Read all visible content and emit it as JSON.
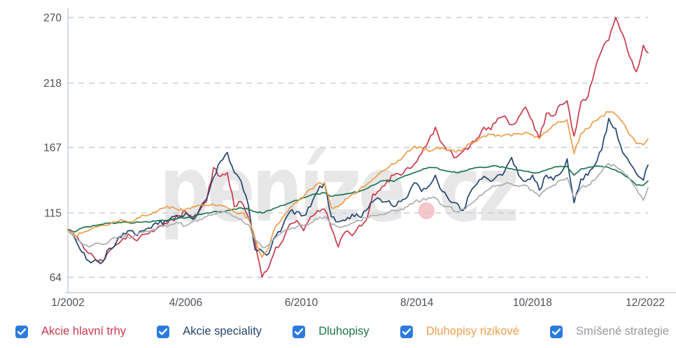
{
  "chart_data": {
    "type": "line",
    "title": "",
    "xlabel": "",
    "ylabel": "",
    "x_start": "1/2002",
    "x_end": "12/2022",
    "x_step_months": 3,
    "x_tick_labels": [
      "1/2002",
      "4/2006",
      "6/2010",
      "8/2014",
      "10/2018",
      "12/2022"
    ],
    "x_tick_months": [
      0,
      51,
      101,
      151,
      201,
      251
    ],
    "y_tick_labels": [
      270,
      218,
      167,
      115,
      64
    ],
    "ylim": [
      64,
      270
    ],
    "grid": "dashed-horizontal",
    "legend_position": "bottom",
    "series": [
      {
        "name": "Akcie hlavní trhy",
        "color": "#c93a4c",
        "values": [
          102,
          97,
          91,
          83,
          78,
          77,
          85,
          90,
          95,
          97,
          93,
          98,
          101,
          104,
          107,
          110,
          113,
          116,
          110,
          117,
          124,
          151,
          144,
          147,
          120,
          124,
          112,
          92,
          64,
          72,
          88,
          93,
          106,
          109,
          101,
          112,
          117,
          118,
          103,
          88,
          100,
          97,
          105,
          109,
          130,
          133,
          140,
          145,
          145,
          151,
          154,
          162,
          172,
          183,
          170,
          165,
          159,
          164,
          168,
          174,
          183,
          181,
          190,
          192,
          185,
          191,
          199,
          188,
          174,
          194,
          192,
          201,
          204,
          176,
          203,
          207,
          228,
          244,
          252,
          270,
          257,
          239,
          227,
          248,
          239
        ]
      },
      {
        "name": "Akcie speciality",
        "color": "#25456f",
        "values": [
          102,
          95,
          84,
          77,
          78,
          76,
          87,
          92,
          99,
          101,
          97,
          101,
          103,
          106,
          109,
          112,
          111,
          115,
          110,
          118,
          126,
          143,
          156,
          163,
          147,
          140,
          122,
          86,
          85,
          83,
          97,
          105,
          116,
          116,
          113,
          120,
          132,
          139,
          112,
          108,
          109,
          114,
          112,
          117,
          124,
          126,
          124,
          120,
          124,
          128,
          139,
          132,
          136,
          145,
          132,
          125,
          123,
          117,
          131,
          138,
          144,
          140,
          145,
          148,
          159,
          145,
          140,
          145,
          133,
          145,
          141,
          146,
          158,
          123,
          142,
          145,
          153,
          165,
          190,
          182,
          163,
          155,
          146,
          141,
          159
        ]
      },
      {
        "name": "Dluhopisy",
        "color": "#1e7450",
        "values": [
          102,
          100,
          103,
          104,
          105,
          106,
          107,
          107,
          108,
          107,
          108,
          108,
          108,
          109,
          109,
          110,
          111,
          111,
          112,
          114,
          115,
          116,
          116,
          117,
          118,
          119,
          118,
          116,
          115,
          117,
          119,
          121,
          123,
          125,
          127,
          129,
          130,
          131,
          128,
          129,
          130,
          131,
          132,
          134,
          137,
          140,
          141,
          140,
          143,
          145,
          147,
          149,
          151,
          151,
          149,
          148,
          147,
          148,
          150,
          151,
          151,
          152,
          152,
          151,
          150,
          149,
          148,
          147,
          147,
          149,
          151,
          152,
          152,
          145,
          150,
          151,
          152,
          152,
          151,
          149,
          146,
          142,
          137,
          137,
          142
        ]
      },
      {
        "name": "Dluhopisy rizikové",
        "color": "#ec9e4c",
        "values": [
          102,
          97,
          99,
          101,
          104,
          105,
          106,
          108,
          109,
          108,
          111,
          113,
          114,
          117,
          119,
          120,
          117,
          118,
          120,
          121,
          121,
          122,
          121,
          119,
          116,
          115,
          111,
          95,
          80,
          88,
          105,
          112,
          119,
          123,
          128,
          134,
          138,
          139,
          119,
          120,
          126,
          130,
          133,
          137,
          142,
          147,
          150,
          154,
          157,
          164,
          168,
          167,
          164,
          166,
          167,
          165,
          163,
          166,
          170,
          172,
          176,
          177,
          177,
          177,
          176,
          178,
          179,
          177,
          174,
          179,
          185,
          187,
          189,
          162,
          178,
          182,
          188,
          192,
          195,
          193,
          187,
          177,
          170,
          169,
          176
        ]
      },
      {
        "name": "Smíšené strategie",
        "color": "#abaeb2",
        "legend_color": "#97999d",
        "values": [
          101,
          96,
          90,
          88,
          91,
          90,
          93,
          95,
          97,
          95,
          98,
          100,
          101,
          103,
          105,
          106,
          107,
          105,
          108,
          110,
          112,
          114,
          115,
          115,
          112,
          110,
          106,
          94,
          88,
          90,
          96,
          100,
          102,
          104,
          105,
          107,
          110,
          112,
          106,
          104,
          105,
          107,
          109,
          111,
          113,
          114,
          115,
          117,
          118,
          120,
          124,
          125,
          127,
          127,
          121,
          120,
          116,
          118,
          122,
          126,
          131,
          135,
          137,
          138,
          138,
          136,
          137,
          133,
          128,
          134,
          137,
          141,
          143,
          127,
          135,
          137,
          141,
          148,
          154,
          152,
          148,
          142,
          134,
          125,
          140
        ]
      }
    ]
  },
  "legend": {
    "checkbox_color": "#2b7ce0",
    "check_color": "#ffffff",
    "items_checked": [
      true,
      true,
      true,
      true,
      true
    ]
  },
  "watermark": {
    "text_main": "peníze",
    "dot": ".",
    "text_suffix": "cz",
    "color": "#e7e7e7",
    "dot_color": "#f6c6ca"
  },
  "axis": {
    "label_color": "#4d5257",
    "line_color": "#c9d2db",
    "grid_color": "#c4ced7"
  }
}
